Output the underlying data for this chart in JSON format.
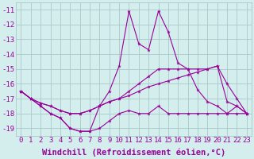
{
  "x": [
    0,
    1,
    2,
    3,
    4,
    5,
    6,
    7,
    8,
    9,
    10,
    11,
    12,
    13,
    14,
    15,
    16,
    17,
    18,
    19,
    20,
    21,
    22,
    23
  ],
  "line_zigzag": [
    -16.5,
    -17.0,
    -17.5,
    -18.0,
    -18.3,
    -19.0,
    -19.2,
    -19.2,
    -19.0,
    -18.5,
    -18.0,
    -17.8,
    -18.0,
    -18.0,
    -17.5,
    -18.0,
    -18.0,
    -18.0,
    -18.0,
    -18.0,
    -18.0,
    -18.0,
    -18.0,
    -18.0
  ],
  "line_spike": [
    -16.5,
    -17.0,
    -17.5,
    -18.0,
    -18.3,
    -19.0,
    -19.2,
    -19.2,
    -17.5,
    -16.5,
    -14.8,
    -11.1,
    -13.3,
    -13.7,
    -11.1,
    -12.5,
    -14.6,
    -15.0,
    -16.4,
    -17.2,
    -17.5,
    -18.0,
    -17.5,
    -18.0
  ],
  "line_ramp1": [
    -16.5,
    -17.0,
    -17.3,
    -17.5,
    -17.8,
    -18.0,
    -18.0,
    -17.8,
    -17.5,
    -17.2,
    -17.0,
    -16.8,
    -16.5,
    -16.2,
    -16.0,
    -15.8,
    -15.6,
    -15.4,
    -15.2,
    -15.0,
    -14.8,
    -16.0,
    -17.0,
    -18.0
  ],
  "line_ramp2": [
    -16.5,
    -17.0,
    -17.3,
    -17.5,
    -17.8,
    -18.0,
    -18.0,
    -17.8,
    -17.5,
    -17.2,
    -17.0,
    -16.5,
    -16.0,
    -15.5,
    -15.0,
    -15.0,
    -15.0,
    -15.0,
    -15.0,
    -15.0,
    -14.8,
    -17.2,
    -17.5,
    -18.0
  ],
  "color": "#990099",
  "bg_color": "#d4eeed",
  "grid_color": "#a8c8c8",
  "xlabel": "Windchill (Refroidissement éolien,°C)",
  "ylim": [
    -19.5,
    -10.5
  ],
  "xlim": [
    -0.5,
    23.5
  ],
  "yticks": [
    -19,
    -18,
    -17,
    -16,
    -15,
    -14,
    -13,
    -12,
    -11
  ],
  "xticks": [
    0,
    1,
    2,
    3,
    4,
    5,
    6,
    7,
    8,
    9,
    10,
    11,
    12,
    13,
    14,
    15,
    16,
    17,
    18,
    19,
    20,
    21,
    22,
    23
  ],
  "tick_fontsize": 6.5,
  "label_fontsize": 7.5
}
